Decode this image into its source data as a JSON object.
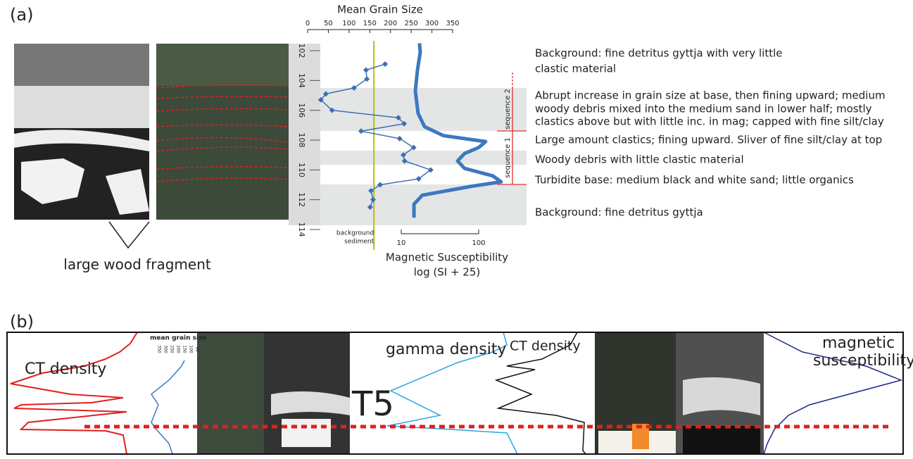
{
  "chart_data": {
    "type": "line",
    "title": "Mean Grain Size",
    "xlim": [
      0,
      350
    ],
    "xticks": [
      0,
      50,
      100,
      150,
      200,
      250,
      300,
      350
    ],
    "ylim": [
      102,
      114
    ],
    "yticks": [
      102,
      104,
      106,
      108,
      110,
      112,
      114
    ],
    "x2label": [
      "Magnetic Susceptibility",
      "log (SI + 25)"
    ],
    "x2lim": [
      10,
      100
    ],
    "x2ticks": [
      10,
      100
    ],
    "x2log": true,
    "reference": {
      "value": 160,
      "label": [
        "background",
        "sediment"
      ],
      "color": "#b5c20a"
    },
    "series": [
      {
        "color": "#3d6fb5",
        "marker": "diamond",
        "values": [
          187,
          141,
          143,
          112,
          44,
          32,
          59,
          219,
          233,
          129,
          222,
          256,
          231,
          234,
          297,
          268,
          175,
          153,
          158,
          151
        ],
        "depth": [
          102.9,
          103.3,
          103.9,
          104.5,
          104.9,
          105.3,
          106.0,
          106.5,
          106.9,
          107.4,
          107.9,
          108.5,
          109.0,
          109.4,
          110.0,
          110.6,
          111.0,
          111.4,
          112.0,
          112.5
        ]
      },
      {
        "color": "#3d78c0",
        "axis": "x2",
        "values": [
          17.2,
          17.6,
          16.2,
          15.2,
          16.5,
          20,
          35,
          123,
          100,
          65.8,
          53.4,
          65.8,
          152,
          195,
          81,
          18.7,
          14.6,
          14.6
        ],
        "depth": [
          101.5,
          102.1,
          103.3,
          104.7,
          106.2,
          107.1,
          107.7,
          108.1,
          108.5,
          108.9,
          109.4,
          109.9,
          110.4,
          110.8,
          111.1,
          111.7,
          112.3,
          113.2
        ]
      }
    ]
  },
  "figure": {
    "panel_a": {
      "label": "(a)",
      "wood_label": "large wood fragment",
      "sequences": [
        "sequence 2",
        "sequence 1"
      ],
      "annotations": [
        [
          "Background: fine detritus gyttja with very little",
          "clastic material"
        ],
        [
          "Abrupt increase in grain size at base, then fining upward; medium",
          "woody debris mixed into the medium sand in lower half; mostly",
          "clastics above but with little inc. in mag; capped with fine silt/clay"
        ],
        [
          "Large amount clastics; fining upward. Sliver of fine silt/clay at top"
        ],
        [
          "Woody debris with little clastic material"
        ],
        [
          "Turbidite base: medium black and white sand; little organics"
        ],
        [
          "Background: fine detritus gyttja"
        ]
      ]
    },
    "panel_b": {
      "label": "(b)",
      "ct_density_1": "CT density",
      "grain_label": "mean grain size",
      "grain_ticks": [
        "350",
        "300",
        "250",
        "200",
        "150",
        "100",
        "50"
      ],
      "gamma_density": "gamma density",
      "ct_density_2": "CT density",
      "unit": "T5",
      "mag_label": [
        "magnetic",
        "susceptibility"
      ]
    }
  }
}
